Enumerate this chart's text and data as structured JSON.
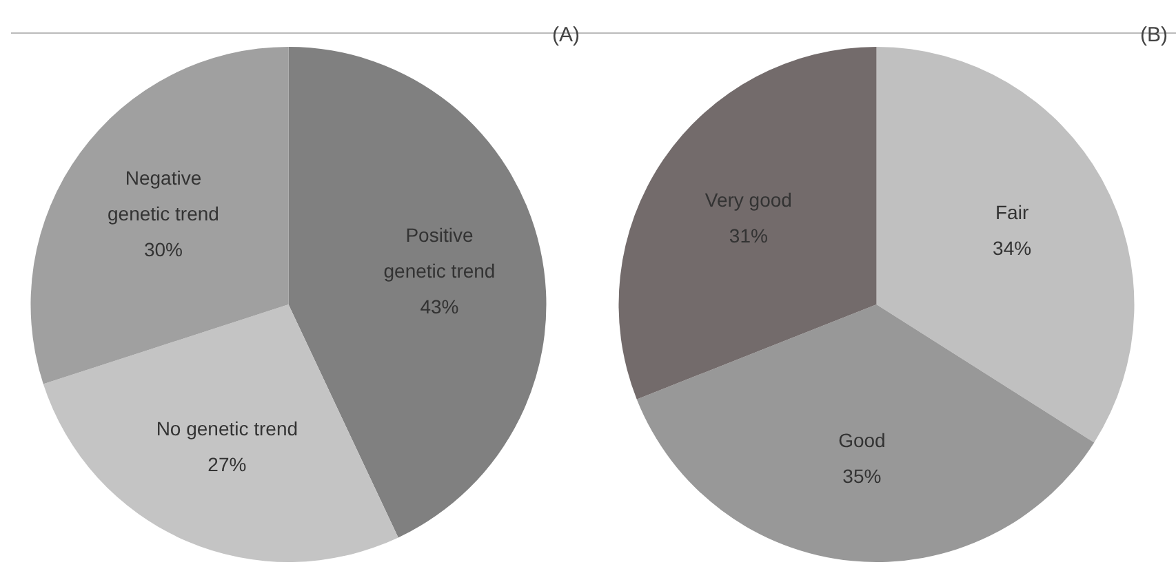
{
  "chart_data": [
    {
      "type": "pie",
      "title": "(A)",
      "categories": [
        "Positive genetic trend",
        "No genetic trend",
        "Negative genetic trend"
      ],
      "values": [
        43,
        27,
        30
      ],
      "colors": [
        "#808080",
        "#c4c4c4",
        "#a0a0a0"
      ],
      "value_labels": [
        "43%",
        "27%",
        "30%"
      ]
    },
    {
      "type": "pie",
      "title": "(B)",
      "categories": [
        "Fair",
        "Good",
        "Very good"
      ],
      "values": [
        34,
        35,
        31
      ],
      "colors": [
        "#c0c0c0",
        "#989898",
        "#736b6b"
      ],
      "value_labels": [
        "34%",
        "35%",
        "31%"
      ]
    }
  ]
}
